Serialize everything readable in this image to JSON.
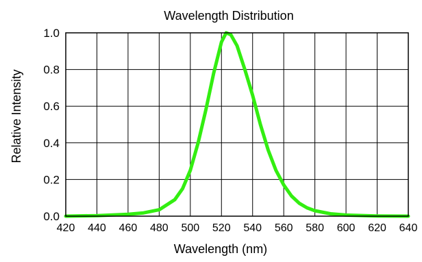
{
  "chart_data": {
    "type": "line",
    "title": "Wavelength Distribution",
    "xlabel": "Wavelength (nm)",
    "ylabel": "Relative Intensity",
    "xlim": [
      420,
      640
    ],
    "ylim": [
      0.0,
      1.0
    ],
    "x_ticks": [
      420,
      440,
      460,
      480,
      500,
      520,
      540,
      560,
      580,
      600,
      620,
      640
    ],
    "x_tick_labels": [
      "420",
      "440",
      "460",
      "480",
      "500",
      "520",
      "540",
      "560",
      "580",
      "600",
      "620",
      "640"
    ],
    "y_ticks": [
      0.0,
      0.2,
      0.4,
      0.6,
      0.8,
      1.0
    ],
    "y_tick_labels": [
      "0.0",
      "0.2",
      "0.4",
      "0.6",
      "0.8",
      "1.0"
    ],
    "grid": true,
    "legend": "none",
    "series": [
      {
        "color": "#33ee11",
        "points": [
          [
            420,
            0.0
          ],
          [
            440,
            0.003
          ],
          [
            460,
            0.01
          ],
          [
            470,
            0.018
          ],
          [
            480,
            0.035
          ],
          [
            490,
            0.09
          ],
          [
            495,
            0.15
          ],
          [
            500,
            0.25
          ],
          [
            505,
            0.4
          ],
          [
            510,
            0.58
          ],
          [
            515,
            0.78
          ],
          [
            520,
            0.95
          ],
          [
            523,
            1.0
          ],
          [
            526,
            0.99
          ],
          [
            530,
            0.93
          ],
          [
            535,
            0.8
          ],
          [
            540,
            0.66
          ],
          [
            545,
            0.5
          ],
          [
            550,
            0.36
          ],
          [
            555,
            0.25
          ],
          [
            560,
            0.17
          ],
          [
            565,
            0.11
          ],
          [
            570,
            0.07
          ],
          [
            575,
            0.045
          ],
          [
            580,
            0.03
          ],
          [
            590,
            0.013
          ],
          [
            600,
            0.006
          ],
          [
            620,
            0.001
          ],
          [
            640,
            0.0
          ]
        ]
      }
    ]
  }
}
